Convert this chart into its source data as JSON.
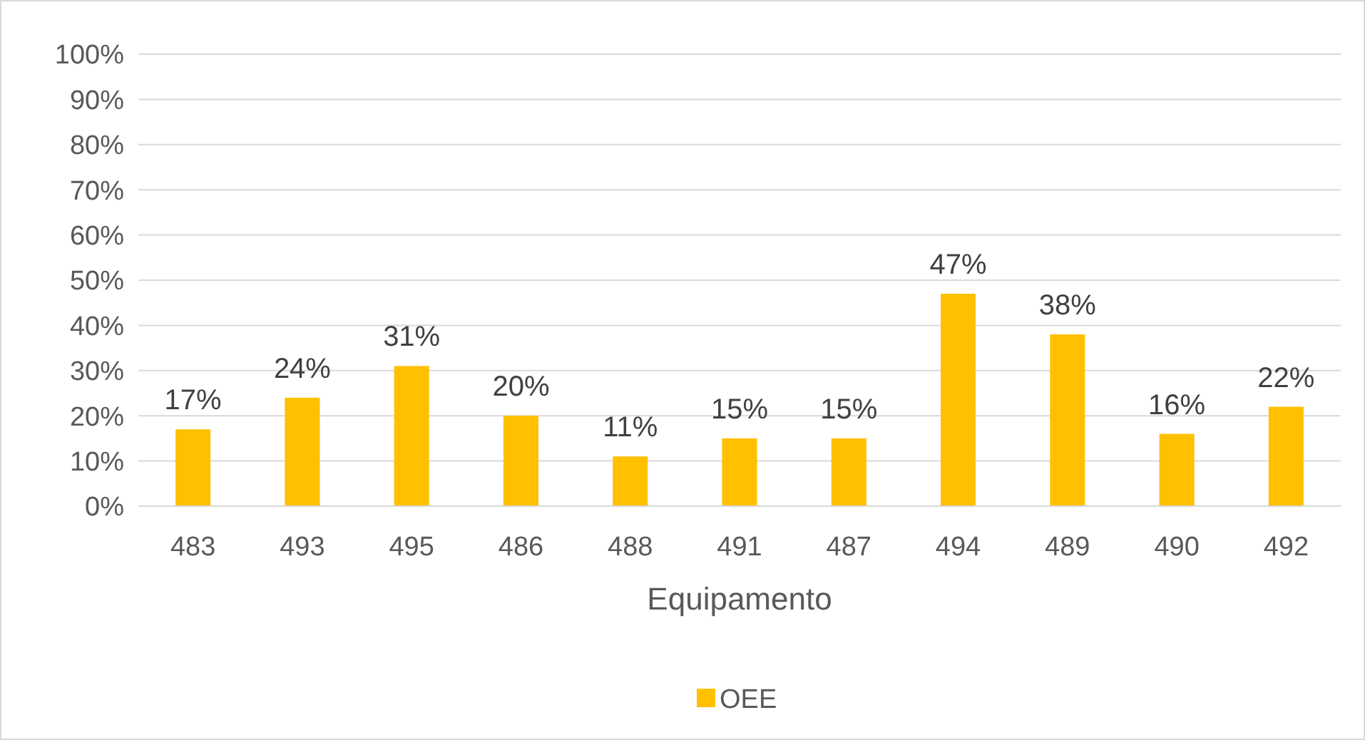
{
  "chart_data": {
    "type": "bar",
    "xlabel": "Equipamento",
    "categories": [
      "483",
      "493",
      "495",
      "486",
      "488",
      "491",
      "487",
      "494",
      "489",
      "490",
      "492"
    ],
    "series": [
      {
        "name": "OEE",
        "color": "#ffc000",
        "values": [
          17,
          24,
          31,
          20,
          11,
          15,
          15,
          47,
          38,
          16,
          22
        ]
      }
    ],
    "ylim": [
      0,
      100
    ],
    "yticks": [
      {
        "value": 0,
        "label": "0%"
      },
      {
        "value": 10,
        "label": "10%"
      },
      {
        "value": 20,
        "label": "20%"
      },
      {
        "value": 30,
        "label": "30%"
      },
      {
        "value": 40,
        "label": "40%"
      },
      {
        "value": 50,
        "label": "50%"
      },
      {
        "value": 60,
        "label": "60%"
      },
      {
        "value": 70,
        "label": "70%"
      },
      {
        "value": 80,
        "label": "80%"
      },
      {
        "value": 90,
        "label": "90%"
      },
      {
        "value": 100,
        "label": "100%"
      }
    ],
    "value_labels": [
      "17%",
      "24%",
      "31%",
      "20%",
      "11%",
      "15%",
      "15%",
      "47%",
      "38%",
      "16%",
      "22%"
    ],
    "grid": "y",
    "legend": "bottom"
  }
}
